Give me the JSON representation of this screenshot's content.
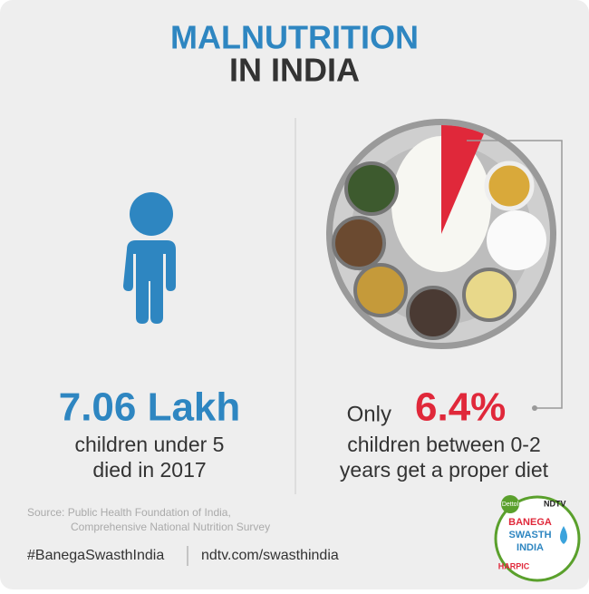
{
  "header": {
    "title_line1": "MALNUTRITION",
    "title_line2": "IN INDIA"
  },
  "left_stat": {
    "figure": "7.06 Lakh",
    "line1": "children under 5",
    "line2": "died in 2017"
  },
  "right_stat": {
    "prefix": "Only",
    "share": {
      "value": 6.4,
      "label": "6.4%"
    },
    "line1": "children between 0-2",
    "line2": "years get a proper diet"
  },
  "source": {
    "line1": "Source: Public Health Foundation of India,",
    "line2": "Comprehensive National Nutrition Survey"
  },
  "footer": {
    "hashtag": "#BanegaSwasthIndia",
    "url": "ndtv.com/swasthindia"
  },
  "logo": {
    "brand1": "Dettol",
    "brand2": "NDTV",
    "line1": "BANEGA",
    "line2": "SWASTH",
    "line3": "INDIA",
    "brand3": "HARPIC"
  }
}
